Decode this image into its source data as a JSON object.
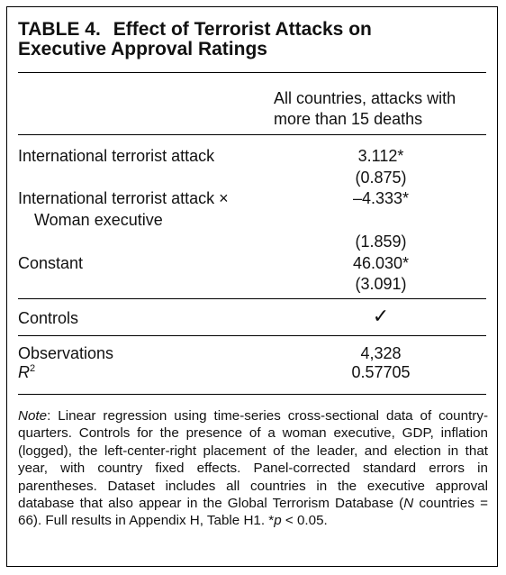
{
  "table": {
    "number": "TABLE 4.",
    "title_line1": "Effect of Terrorist Attacks on",
    "title_line2": "Executive Approval Ratings",
    "column_header": "All countries, attacks with more than 15 deaths",
    "rows": [
      {
        "label": "International terrorist attack",
        "value": "3.112*",
        "se": "(0.875)"
      },
      {
        "label_line1": "International terrorist attack ×",
        "label_line2": "Woman executive",
        "value": "–4.333*",
        "se": "(1.859)"
      },
      {
        "label": "Constant",
        "value": "46.030*",
        "se": "(3.091)"
      }
    ],
    "controls": {
      "label": "Controls",
      "value": "✓"
    },
    "observations": {
      "label": "Observations",
      "value": "4,328"
    },
    "r2": {
      "label_base": "R",
      "label_sup": "2",
      "value": "0.57705"
    }
  },
  "note": {
    "lead": "Note",
    "part1": ": Linear regression using time-series cross-sectional data of country-quarters. Controls for the presence of a woman executive, GDP, inflation (logged), the left-center-right placement of the leader, and election in that year, with country fixed effects. Panel-corrected standard errors in parentheses. Dataset includes all countries in the executive approval database that also appear in the Global Terrorism Database (",
    "n_symbol": "N",
    "part2": " countries = 66). Full results in Appendix H, Table H1. *",
    "p_symbol": "p",
    "part3": " < 0.05."
  }
}
